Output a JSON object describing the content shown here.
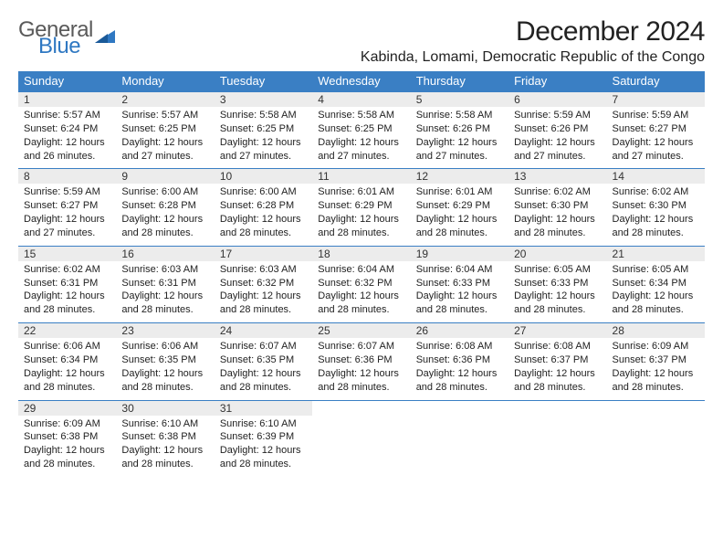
{
  "logo": {
    "general": "General",
    "blue": "Blue"
  },
  "title": "December 2024",
  "location": "Kabinda, Lomami, Democratic Republic of the Congo",
  "colors": {
    "header_bg": "#3a7fc4",
    "header_text": "#ffffff",
    "daynum_bg": "#ececec",
    "border": "#3a7fc4",
    "logo_grey": "#5a5a5a",
    "logo_blue": "#2f78c2"
  },
  "weekdays": [
    "Sunday",
    "Monday",
    "Tuesday",
    "Wednesday",
    "Thursday",
    "Friday",
    "Saturday"
  ],
  "weeks": [
    [
      {
        "n": "1",
        "sr": "Sunrise: 5:57 AM",
        "ss": "Sunset: 6:24 PM",
        "d1": "Daylight: 12 hours",
        "d2": "and 26 minutes."
      },
      {
        "n": "2",
        "sr": "Sunrise: 5:57 AM",
        "ss": "Sunset: 6:25 PM",
        "d1": "Daylight: 12 hours",
        "d2": "and 27 minutes."
      },
      {
        "n": "3",
        "sr": "Sunrise: 5:58 AM",
        "ss": "Sunset: 6:25 PM",
        "d1": "Daylight: 12 hours",
        "d2": "and 27 minutes."
      },
      {
        "n": "4",
        "sr": "Sunrise: 5:58 AM",
        "ss": "Sunset: 6:25 PM",
        "d1": "Daylight: 12 hours",
        "d2": "and 27 minutes."
      },
      {
        "n": "5",
        "sr": "Sunrise: 5:58 AM",
        "ss": "Sunset: 6:26 PM",
        "d1": "Daylight: 12 hours",
        "d2": "and 27 minutes."
      },
      {
        "n": "6",
        "sr": "Sunrise: 5:59 AM",
        "ss": "Sunset: 6:26 PM",
        "d1": "Daylight: 12 hours",
        "d2": "and 27 minutes."
      },
      {
        "n": "7",
        "sr": "Sunrise: 5:59 AM",
        "ss": "Sunset: 6:27 PM",
        "d1": "Daylight: 12 hours",
        "d2": "and 27 minutes."
      }
    ],
    [
      {
        "n": "8",
        "sr": "Sunrise: 5:59 AM",
        "ss": "Sunset: 6:27 PM",
        "d1": "Daylight: 12 hours",
        "d2": "and 27 minutes."
      },
      {
        "n": "9",
        "sr": "Sunrise: 6:00 AM",
        "ss": "Sunset: 6:28 PM",
        "d1": "Daylight: 12 hours",
        "d2": "and 28 minutes."
      },
      {
        "n": "10",
        "sr": "Sunrise: 6:00 AM",
        "ss": "Sunset: 6:28 PM",
        "d1": "Daylight: 12 hours",
        "d2": "and 28 minutes."
      },
      {
        "n": "11",
        "sr": "Sunrise: 6:01 AM",
        "ss": "Sunset: 6:29 PM",
        "d1": "Daylight: 12 hours",
        "d2": "and 28 minutes."
      },
      {
        "n": "12",
        "sr": "Sunrise: 6:01 AM",
        "ss": "Sunset: 6:29 PM",
        "d1": "Daylight: 12 hours",
        "d2": "and 28 minutes."
      },
      {
        "n": "13",
        "sr": "Sunrise: 6:02 AM",
        "ss": "Sunset: 6:30 PM",
        "d1": "Daylight: 12 hours",
        "d2": "and 28 minutes."
      },
      {
        "n": "14",
        "sr": "Sunrise: 6:02 AM",
        "ss": "Sunset: 6:30 PM",
        "d1": "Daylight: 12 hours",
        "d2": "and 28 minutes."
      }
    ],
    [
      {
        "n": "15",
        "sr": "Sunrise: 6:02 AM",
        "ss": "Sunset: 6:31 PM",
        "d1": "Daylight: 12 hours",
        "d2": "and 28 minutes."
      },
      {
        "n": "16",
        "sr": "Sunrise: 6:03 AM",
        "ss": "Sunset: 6:31 PM",
        "d1": "Daylight: 12 hours",
        "d2": "and 28 minutes."
      },
      {
        "n": "17",
        "sr": "Sunrise: 6:03 AM",
        "ss": "Sunset: 6:32 PM",
        "d1": "Daylight: 12 hours",
        "d2": "and 28 minutes."
      },
      {
        "n": "18",
        "sr": "Sunrise: 6:04 AM",
        "ss": "Sunset: 6:32 PM",
        "d1": "Daylight: 12 hours",
        "d2": "and 28 minutes."
      },
      {
        "n": "19",
        "sr": "Sunrise: 6:04 AM",
        "ss": "Sunset: 6:33 PM",
        "d1": "Daylight: 12 hours",
        "d2": "and 28 minutes."
      },
      {
        "n": "20",
        "sr": "Sunrise: 6:05 AM",
        "ss": "Sunset: 6:33 PM",
        "d1": "Daylight: 12 hours",
        "d2": "and 28 minutes."
      },
      {
        "n": "21",
        "sr": "Sunrise: 6:05 AM",
        "ss": "Sunset: 6:34 PM",
        "d1": "Daylight: 12 hours",
        "d2": "and 28 minutes."
      }
    ],
    [
      {
        "n": "22",
        "sr": "Sunrise: 6:06 AM",
        "ss": "Sunset: 6:34 PM",
        "d1": "Daylight: 12 hours",
        "d2": "and 28 minutes."
      },
      {
        "n": "23",
        "sr": "Sunrise: 6:06 AM",
        "ss": "Sunset: 6:35 PM",
        "d1": "Daylight: 12 hours",
        "d2": "and 28 minutes."
      },
      {
        "n": "24",
        "sr": "Sunrise: 6:07 AM",
        "ss": "Sunset: 6:35 PM",
        "d1": "Daylight: 12 hours",
        "d2": "and 28 minutes."
      },
      {
        "n": "25",
        "sr": "Sunrise: 6:07 AM",
        "ss": "Sunset: 6:36 PM",
        "d1": "Daylight: 12 hours",
        "d2": "and 28 minutes."
      },
      {
        "n": "26",
        "sr": "Sunrise: 6:08 AM",
        "ss": "Sunset: 6:36 PM",
        "d1": "Daylight: 12 hours",
        "d2": "and 28 minutes."
      },
      {
        "n": "27",
        "sr": "Sunrise: 6:08 AM",
        "ss": "Sunset: 6:37 PM",
        "d1": "Daylight: 12 hours",
        "d2": "and 28 minutes."
      },
      {
        "n": "28",
        "sr": "Sunrise: 6:09 AM",
        "ss": "Sunset: 6:37 PM",
        "d1": "Daylight: 12 hours",
        "d2": "and 28 minutes."
      }
    ],
    [
      {
        "n": "29",
        "sr": "Sunrise: 6:09 AM",
        "ss": "Sunset: 6:38 PM",
        "d1": "Daylight: 12 hours",
        "d2": "and 28 minutes."
      },
      {
        "n": "30",
        "sr": "Sunrise: 6:10 AM",
        "ss": "Sunset: 6:38 PM",
        "d1": "Daylight: 12 hours",
        "d2": "and 28 minutes."
      },
      {
        "n": "31",
        "sr": "Sunrise: 6:10 AM",
        "ss": "Sunset: 6:39 PM",
        "d1": "Daylight: 12 hours",
        "d2": "and 28 minutes."
      },
      null,
      null,
      null,
      null
    ]
  ]
}
